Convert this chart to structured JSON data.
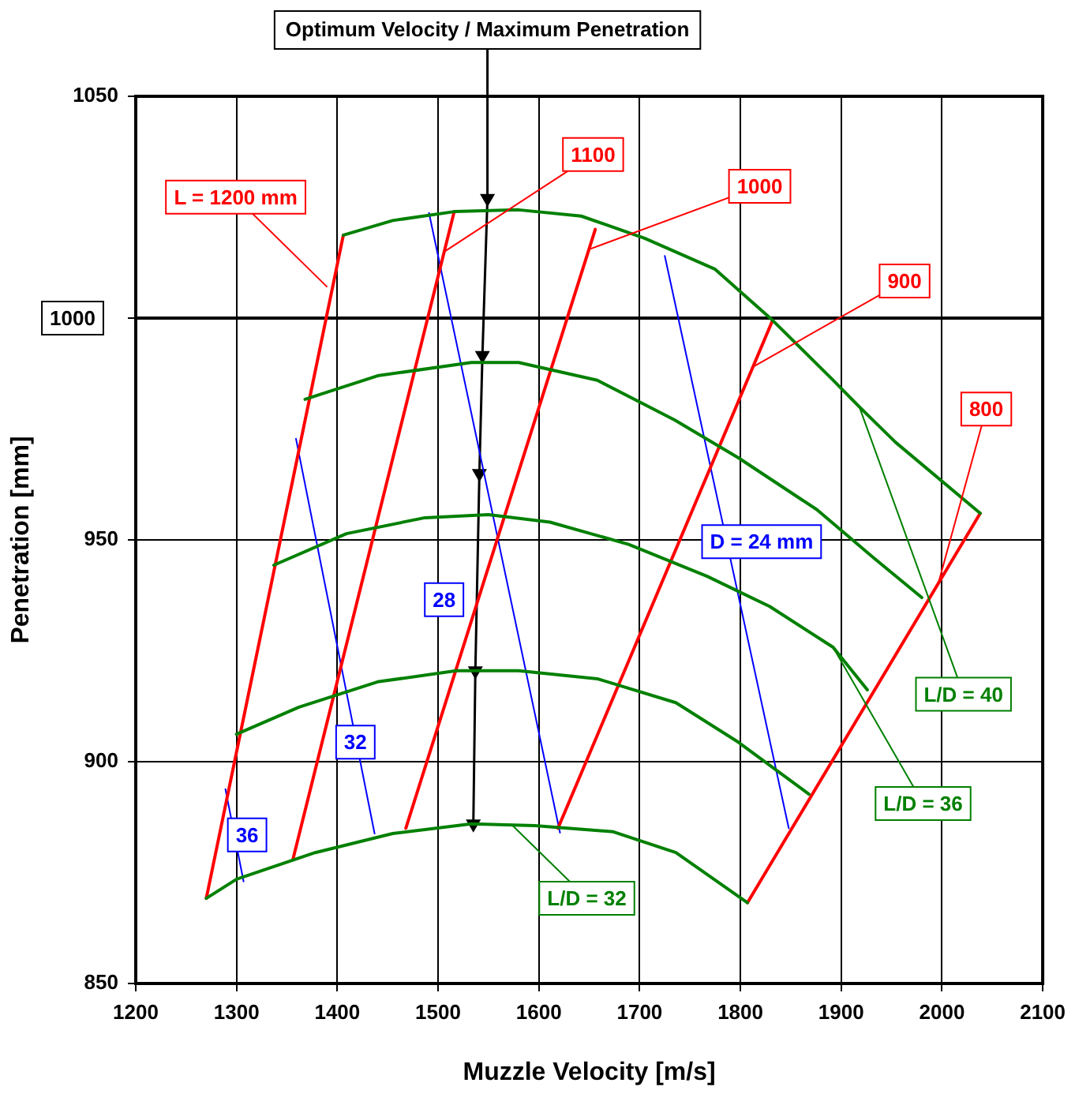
{
  "chart_data": {
    "type": "line",
    "title": "Optimum Velocity / Maximum Penetration",
    "xlabel": "Muzzle Velocity [m/s]",
    "ylabel": "Penetration [mm]",
    "xlim": [
      1200,
      2100
    ],
    "xticks": [
      1200,
      1300,
      1400,
      1500,
      1600,
      1700,
      1800,
      1900,
      2000,
      2100
    ],
    "ylim": [
      850,
      1050
    ],
    "yticks": [
      850,
      900,
      950,
      {
        "value": 1000,
        "label": null
      },
      1050
    ],
    "grid": true,
    "legend": false,
    "marker": "none",
    "ref_lines": [
      {
        "axis": "y",
        "value": 1000,
        "label": "1000",
        "color": "#000000"
      }
    ],
    "series": [
      {
        "color": "#008000",
        "x": [
          1406,
          1455,
          1516,
          1580,
          1642,
          1705,
          1775,
          1832,
          1892,
          1918,
          1954,
          2038
        ],
        "values": [
          1018.7,
          1022,
          1024,
          1024.4,
          1023,
          1018,
          1011,
          999.5,
          986,
          980,
          972,
          956
        ]
      },
      {
        "color": "#008000",
        "x": [
          1368,
          1440,
          1533,
          1580,
          1658,
          1735,
          1798,
          1876,
          1932,
          1980
        ],
        "values": [
          981.7,
          987,
          990,
          990,
          986,
          977,
          968.5,
          956.8,
          946,
          937
        ]
      },
      {
        "color": "#008000",
        "x": [
          1337,
          1409,
          1487,
          1550,
          1611,
          1689,
          1767,
          1829,
          1892,
          1926
        ],
        "values": [
          944.3,
          951.4,
          955,
          955.7,
          954,
          949,
          941.8,
          935,
          925.8,
          916.2
        ]
      },
      {
        "color": "#008000",
        "x": [
          1300,
          1362,
          1440,
          1518,
          1580,
          1658,
          1736,
          1798,
          1868
        ],
        "values": [
          906.2,
          912.3,
          918,
          920.5,
          920.5,
          918.7,
          913.3,
          904.4,
          892.7
        ]
      },
      {
        "color": "#008000",
        "x": [
          1270,
          1300,
          1378,
          1455,
          1533,
          1596,
          1674,
          1736,
          1807
        ],
        "values": [
          869.2,
          873.5,
          879.5,
          883.8,
          886,
          885.6,
          884.2,
          879.5,
          868.2
        ]
      },
      {
        "color": "#ff0000",
        "x": [
          1270,
          1406
        ],
        "values": [
          869.2,
          1018.7
        ]
      },
      {
        "color": "#ff0000",
        "x": [
          1356,
          1516
        ],
        "values": [
          878,
          1024
        ]
      },
      {
        "color": "#ff0000",
        "x": [
          1468,
          1656
        ],
        "values": [
          885,
          1020
        ]
      },
      {
        "color": "#ff0000",
        "x": [
          1619,
          1832
        ],
        "values": [
          885,
          999.5
        ]
      },
      {
        "color": "#ff0000",
        "x": [
          1807,
          2038
        ],
        "values": [
          868.2,
          956
        ]
      },
      {
        "color": "#0000ff",
        "x": [
          1725,
          1848
        ],
        "values": [
          1014,
          885
        ]
      },
      {
        "color": "#0000ff",
        "x": [
          1491,
          1621
        ],
        "values": [
          1023.7,
          884
        ]
      },
      {
        "color": "#0000ff",
        "x": [
          1359,
          1437
        ],
        "values": [
          972.8,
          883.8
        ]
      },
      {
        "color": "#0000ff",
        "x": [
          1289,
          1307
        ],
        "values": [
          893.8,
          873
        ]
      },
      {
        "color": "#000000",
        "marker": "triangle",
        "x": [
          1549,
          1544,
          1541,
          1537,
          1535
        ],
        "values": [
          1027,
          991.6,
          965,
          920.5,
          886
        ]
      }
    ],
    "annotations": [
      {
        "text": "L = 1200 mm",
        "x": 1390,
        "y": 1007
      },
      {
        "text": "1100",
        "x": 1505,
        "y": 1014.8
      },
      {
        "text": "1000",
        "x": 1650,
        "y": 1015.5
      },
      {
        "text": "900",
        "x": 1811,
        "y": 988.8
      },
      {
        "text": "800",
        "x": 1997,
        "y": 940.7
      },
      {
        "text": "D = 24 mm",
        "x": 1785,
        "y": 949.6
      },
      {
        "text": "28",
        "x": 1506,
        "y": 936.5
      },
      {
        "text": "32",
        "x": 1418,
        "y": 904.4
      },
      {
        "text": "36",
        "x": 1298,
        "y": 883.5
      },
      {
        "text": "L/D = 40",
        "x": 1918,
        "y": 980
      },
      {
        "text": "L/D = 36",
        "x": 1892,
        "y": 925.8
      },
      {
        "text": "L/D = 32",
        "x": 1574,
        "y": 885.6
      }
    ]
  }
}
